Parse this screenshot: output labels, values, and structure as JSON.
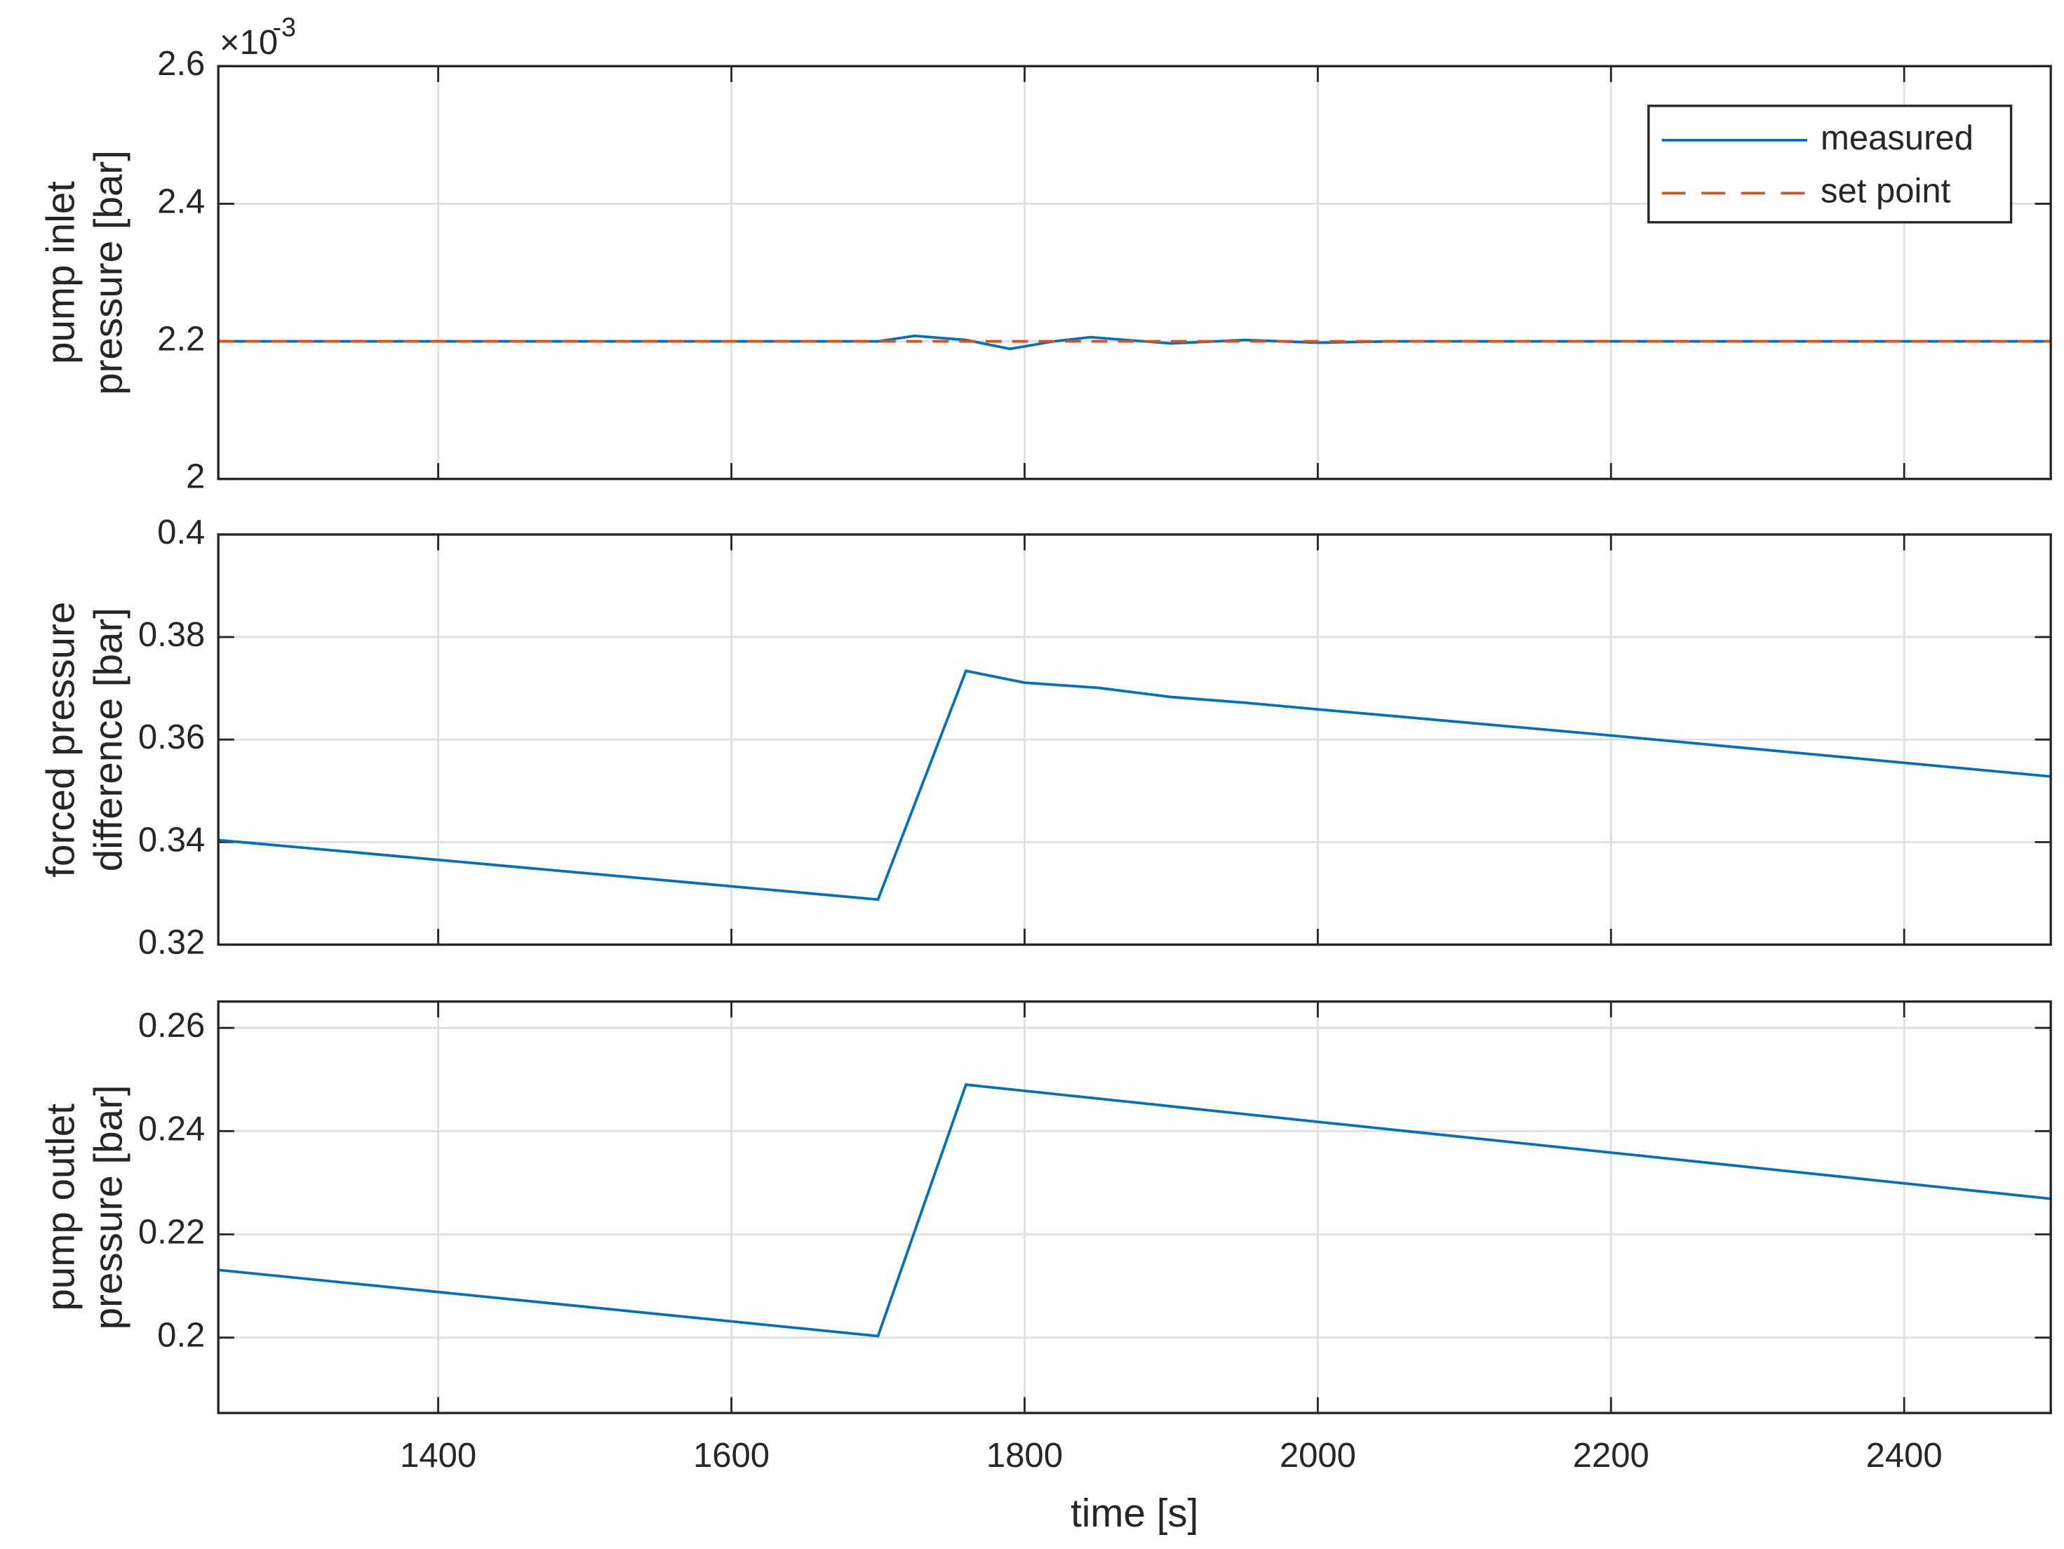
{
  "chart_data": [
    {
      "type": "line",
      "y_label": [
        "pump inlet",
        "pressure [bar]"
      ],
      "y_exponent": {
        "base": "×10",
        "power": "-3"
      },
      "x": [
        1250,
        1700,
        1725,
        1760,
        1790,
        1820,
        1845,
        1875,
        1900,
        1950,
        1975,
        2000,
        2050,
        2500
      ],
      "series": [
        {
          "name": "measured",
          "color": "#0072bd",
          "dashed": false,
          "values": [
            0.0022,
            0.0022,
            0.002208,
            0.002202,
            0.002189,
            0.0022,
            0.002206,
            0.002201,
            0.002197,
            0.002202,
            0.0022,
            0.002198,
            0.0022,
            0.0022
          ]
        },
        {
          "name": "set point",
          "color": "#d95319",
          "dashed": true,
          "values": [
            0.0022,
            0.0022,
            0.0022,
            0.0022,
            0.0022,
            0.0022,
            0.0022,
            0.0022,
            0.0022,
            0.0022,
            0.0022,
            0.0022,
            0.0022,
            0.0022
          ]
        }
      ],
      "xlim": [
        1250,
        2500
      ],
      "xticks": [
        1400,
        1600,
        1800,
        2000,
        2200,
        2400
      ],
      "ylim": [
        0.002,
        0.0026
      ],
      "yticks": [
        {
          "value": 0.002,
          "label": "2"
        },
        {
          "value": 0.0022,
          "label": "2.2"
        },
        {
          "value": 0.0024,
          "label": "2.4"
        },
        {
          "value": 0.0026,
          "label": "2.6"
        }
      ],
      "grid": true,
      "legend": "top-right"
    },
    {
      "type": "line",
      "y_label": [
        "forced pressure",
        "difference [bar]"
      ],
      "x": [
        1250,
        1700,
        1760,
        1800,
        1850,
        1900,
        1950,
        2000,
        2200,
        2500
      ],
      "series": [
        {
          "color": "#0072bd",
          "dashed": false,
          "values": [
            0.3404,
            0.3288,
            0.3734,
            0.3711,
            0.3701,
            0.3683,
            0.3672,
            0.3659,
            0.3608,
            0.3528
          ]
        }
      ],
      "xlim": [
        1250,
        2500
      ],
      "xticks": [
        1400,
        1600,
        1800,
        2000,
        2200,
        2400
      ],
      "ylim": [
        0.32,
        0.4
      ],
      "yticks": [
        0.32,
        0.34,
        0.36,
        0.38,
        0.4
      ],
      "grid": true
    },
    {
      "type": "line",
      "y_label": [
        "pump outlet",
        "pressure [bar]"
      ],
      "x_label": "time [s]",
      "x": [
        1250,
        1700,
        1760,
        2000,
        2500
      ],
      "series": [
        {
          "color": "#0072bd",
          "dashed": false,
          "values": [
            0.2131,
            0.2003,
            0.249,
            0.2418,
            0.2269
          ]
        }
      ],
      "xlim": [
        1250,
        2500
      ],
      "xticks": [
        1400,
        1600,
        1800,
        2000,
        2200,
        2400
      ],
      "ylim": [
        0.1854,
        0.2651
      ],
      "yticks": [
        0.2,
        0.22,
        0.24,
        0.26
      ],
      "grid": true,
      "show_x_tick_labels": true
    }
  ]
}
